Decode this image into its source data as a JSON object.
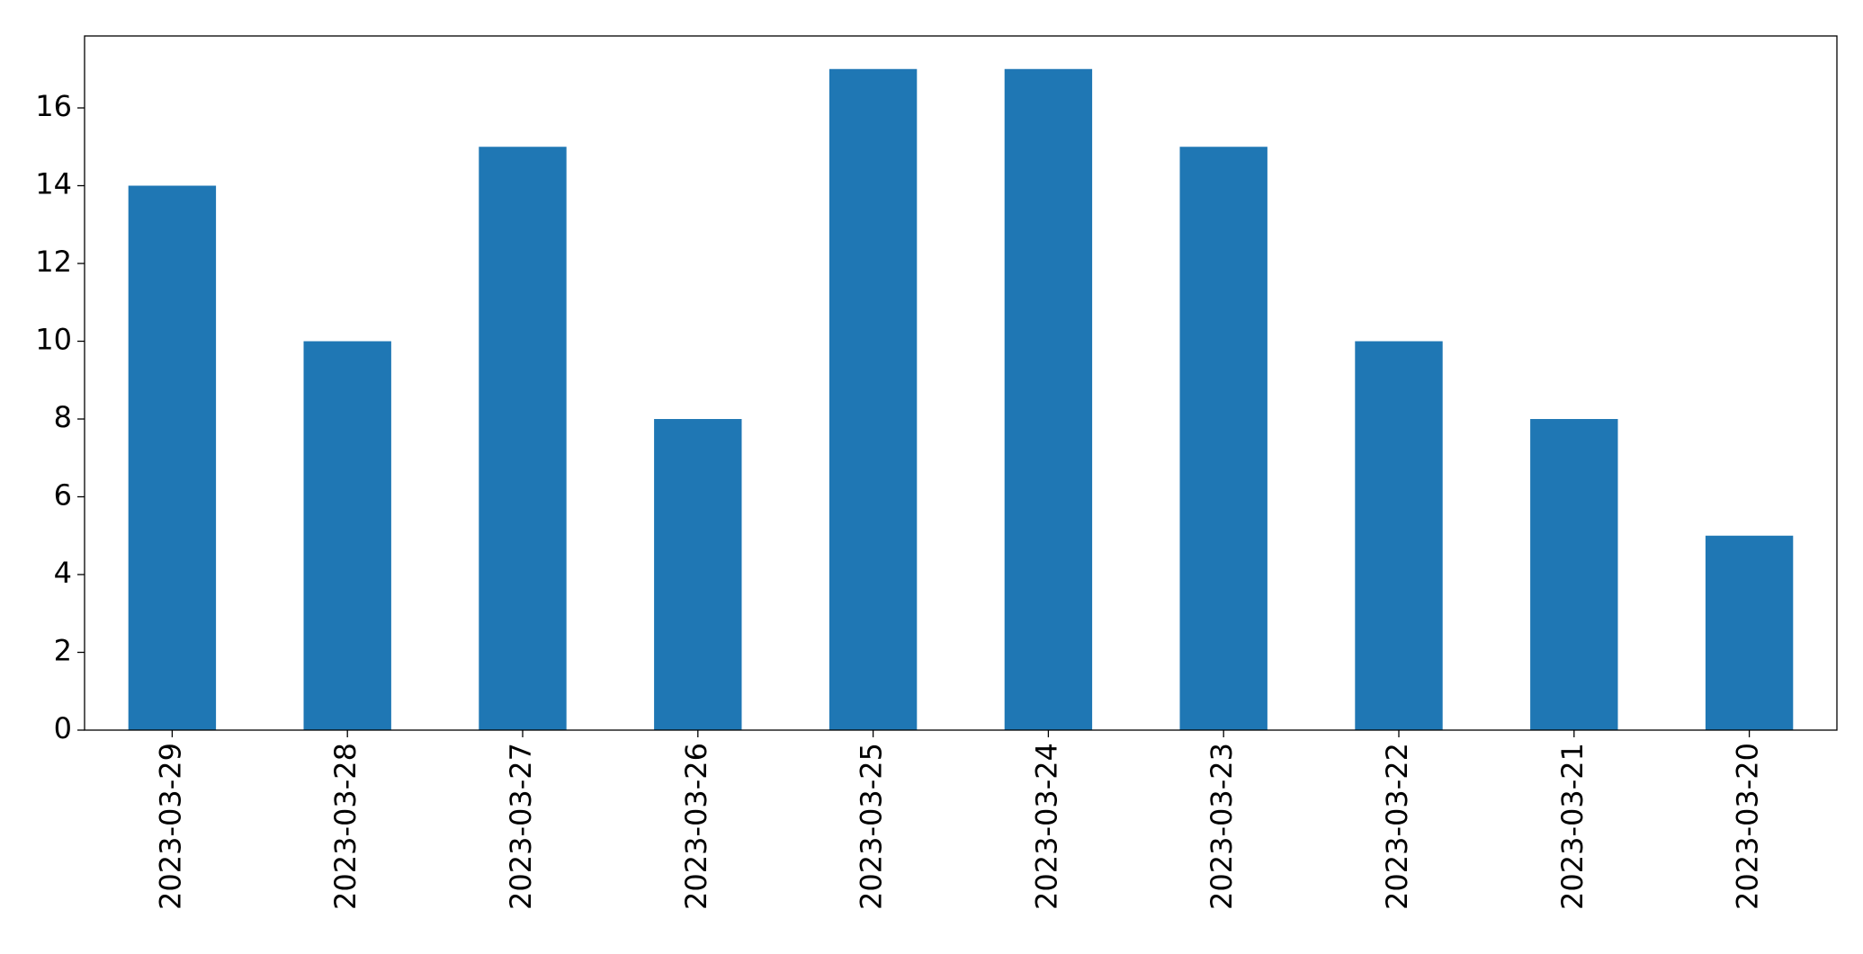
{
  "chart_data": {
    "type": "bar",
    "categories": [
      "2023-03-29",
      "2023-03-28",
      "2023-03-27",
      "2023-03-26",
      "2023-03-25",
      "2023-03-24",
      "2023-03-23",
      "2023-03-22",
      "2023-03-21",
      "2023-03-20"
    ],
    "values": [
      14,
      10,
      15,
      8,
      17,
      17,
      15,
      10,
      8,
      5
    ],
    "color": "#1f77b4",
    "ylim": [
      0,
      17.85
    ],
    "yticks": [
      0,
      2,
      4,
      6,
      8,
      10,
      12,
      14,
      16
    ],
    "grid": false
  }
}
